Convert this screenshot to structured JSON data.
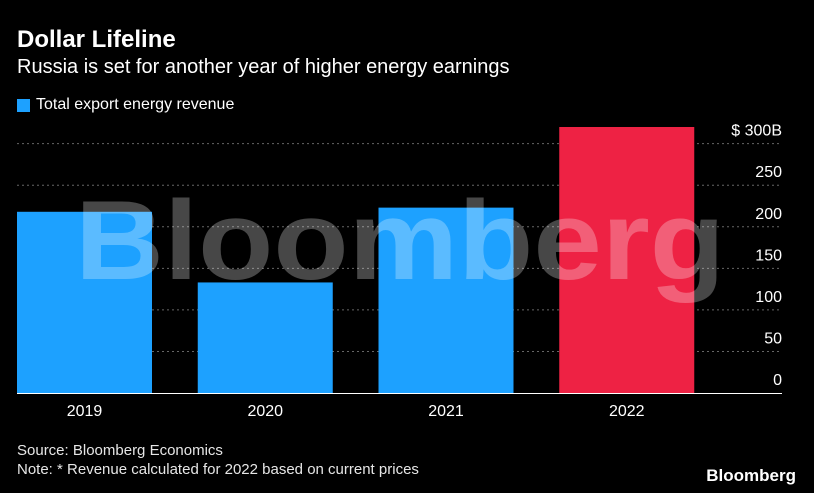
{
  "title": "Dollar Lifeline",
  "subtitle": "Russia is set for another year of higher energy earnings",
  "legend": {
    "label": "Total export energy revenue",
    "color": "#1da1ff"
  },
  "source": "Source: Bloomberg Economics",
  "note": "Note: * Revenue calculated for 2022 based on current prices",
  "brand": "Bloomberg",
  "watermark": "Bloomberg",
  "colors": {
    "background": "#000000",
    "bar": "#1da1ff",
    "highlight": "#ee2244",
    "grid": "#666666"
  },
  "chart_data": {
    "type": "bar",
    "categories": [
      "2019",
      "2020",
      "2021",
      "2022"
    ],
    "values": [
      218,
      133,
      223,
      320
    ],
    "highlight_index": 3,
    "ylim": [
      0,
      320
    ],
    "yticks": [
      0,
      50,
      100,
      150,
      200,
      250,
      300
    ],
    "ytick_labels": [
      "0",
      "50",
      "100",
      "150",
      "200",
      "250",
      "$ 300B"
    ],
    "grid": true,
    "legend_position": "top-left",
    "title": "Dollar Lifeline",
    "subtitle": "Russia is set for another year of higher energy earnings",
    "xlabel": "",
    "ylabel": ""
  }
}
